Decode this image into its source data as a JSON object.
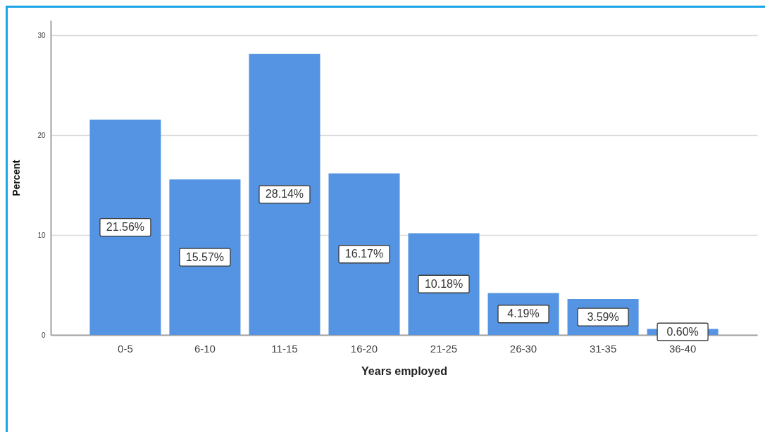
{
  "chart_data": {
    "type": "bar",
    "xlabel": "Years employed",
    "ylabel": "Percent",
    "categories": [
      "0-5",
      "6-10",
      "11-15",
      "16-20",
      "21-25",
      "26-30",
      "31-35",
      "36-40"
    ],
    "values": [
      21.56,
      15.57,
      28.14,
      16.17,
      10.18,
      4.19,
      3.59,
      0.6
    ],
    "value_labels": [
      "21.56%",
      "15.57%",
      "28.14%",
      "16.17%",
      "10.18%",
      "4.19%",
      "3.59%",
      "0.60%"
    ],
    "color": "#5594e2",
    "ylim": [
      0,
      31.5
    ],
    "yticks": [
      0,
      10,
      20,
      30
    ],
    "grid": "y"
  }
}
